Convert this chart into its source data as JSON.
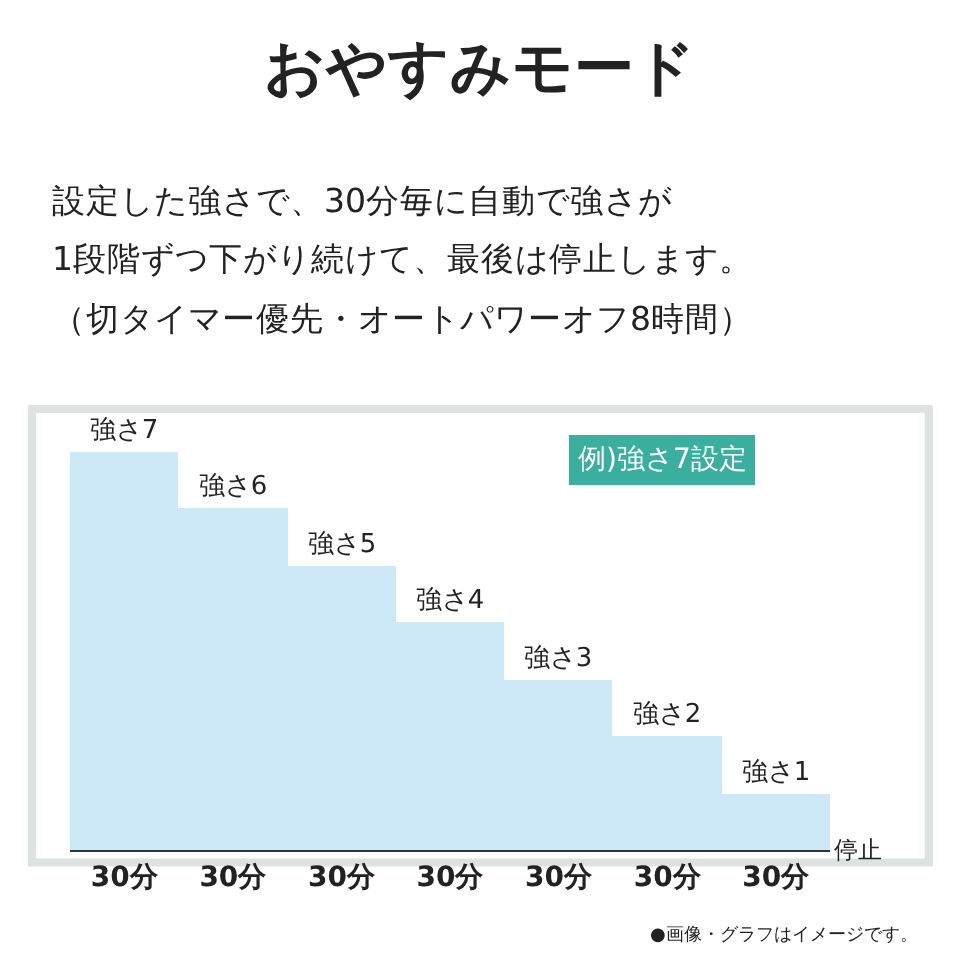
{
  "chart_data": {
    "type": "bar",
    "title": "おやすみモード",
    "subtitle": "設定した強さで、30分毎に自動で強さが",
    "categories": [
      "30分",
      "30分",
      "30分",
      "30分",
      "30分",
      "30分",
      "30分"
    ],
    "values": [
      7,
      6,
      5,
      4,
      3,
      2,
      1
    ],
    "value_labels": [
      "強さ7",
      "強さ6",
      "強さ5",
      "強さ4",
      "強さ3",
      "強さ2",
      "強さ1"
    ],
    "color": "#cde9f7",
    "annotations": [
      "1段階ずつ下がり続けて、最後は停止します。",
      "（切タイマー優先・オートパワーオフ8時間）",
      "例)強さ7設定",
      "停止",
      "●画像・グラフはイメージです。"
    ]
  }
}
